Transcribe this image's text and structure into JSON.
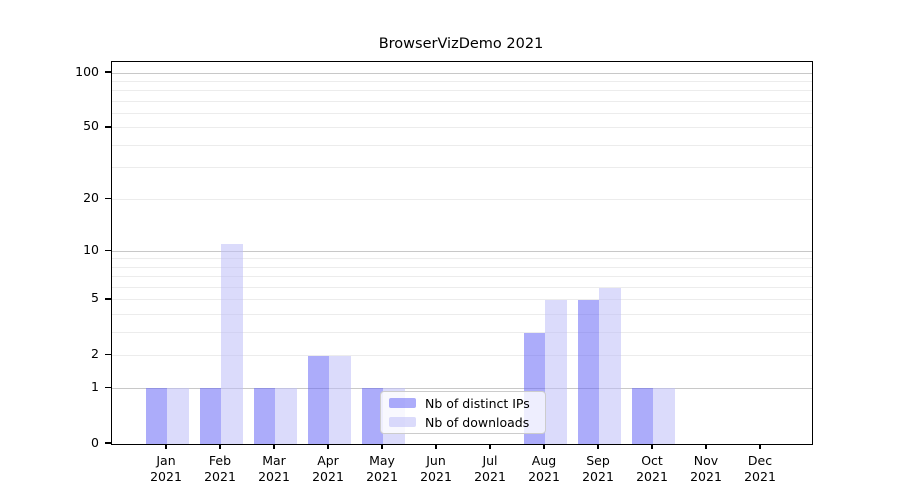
{
  "title": "BrowserVizDemo 2021",
  "chart_data": {
    "type": "bar",
    "title": "BrowserVizDemo 2021",
    "x_months": [
      "Jan",
      "Feb",
      "Mar",
      "Apr",
      "May",
      "Jun",
      "Jul",
      "Aug",
      "Sep",
      "Oct",
      "Nov",
      "Dec"
    ],
    "x_year": "2021",
    "series": [
      {
        "name": "Nb of distinct IPs",
        "color": "rgba(103,103,246,0.55)",
        "values": [
          1,
          1,
          1,
          2,
          1,
          0,
          0,
          3,
          5,
          1,
          0,
          0
        ]
      },
      {
        "name": "Nb of downloads",
        "color": "rgba(190,190,248,0.55)",
        "values": [
          1,
          11,
          1,
          2,
          1,
          0,
          0,
          5,
          6,
          1,
          0,
          0
        ]
      }
    ],
    "y_axis": {
      "scale": "log10(1+y)",
      "tick_values": [
        0,
        1,
        2,
        5,
        10,
        20,
        50,
        100
      ],
      "tick_labels": [
        "0",
        "1",
        "2",
        "5",
        "10",
        "20",
        "50",
        "100"
      ],
      "minor_gridlines": [
        2,
        3,
        4,
        5,
        6,
        7,
        8,
        9,
        20,
        30,
        40,
        50,
        60,
        70,
        80,
        90
      ],
      "major_gridlines": [
        1,
        10,
        100
      ],
      "ylim": [
        0,
        115
      ]
    },
    "xlabel": "",
    "ylabel": "",
    "grid": true,
    "legend_location": "lower center"
  },
  "colors": {
    "bar_distinct_ips_on_white": "#ababfa",
    "bar_downloads_on_white": "#dbdbfb",
    "gridline_minor": "#ececec",
    "gridline_major": "#c8c8c8",
    "axis": "#000000",
    "legend_border": "#cccccc",
    "background": "#ffffff"
  }
}
